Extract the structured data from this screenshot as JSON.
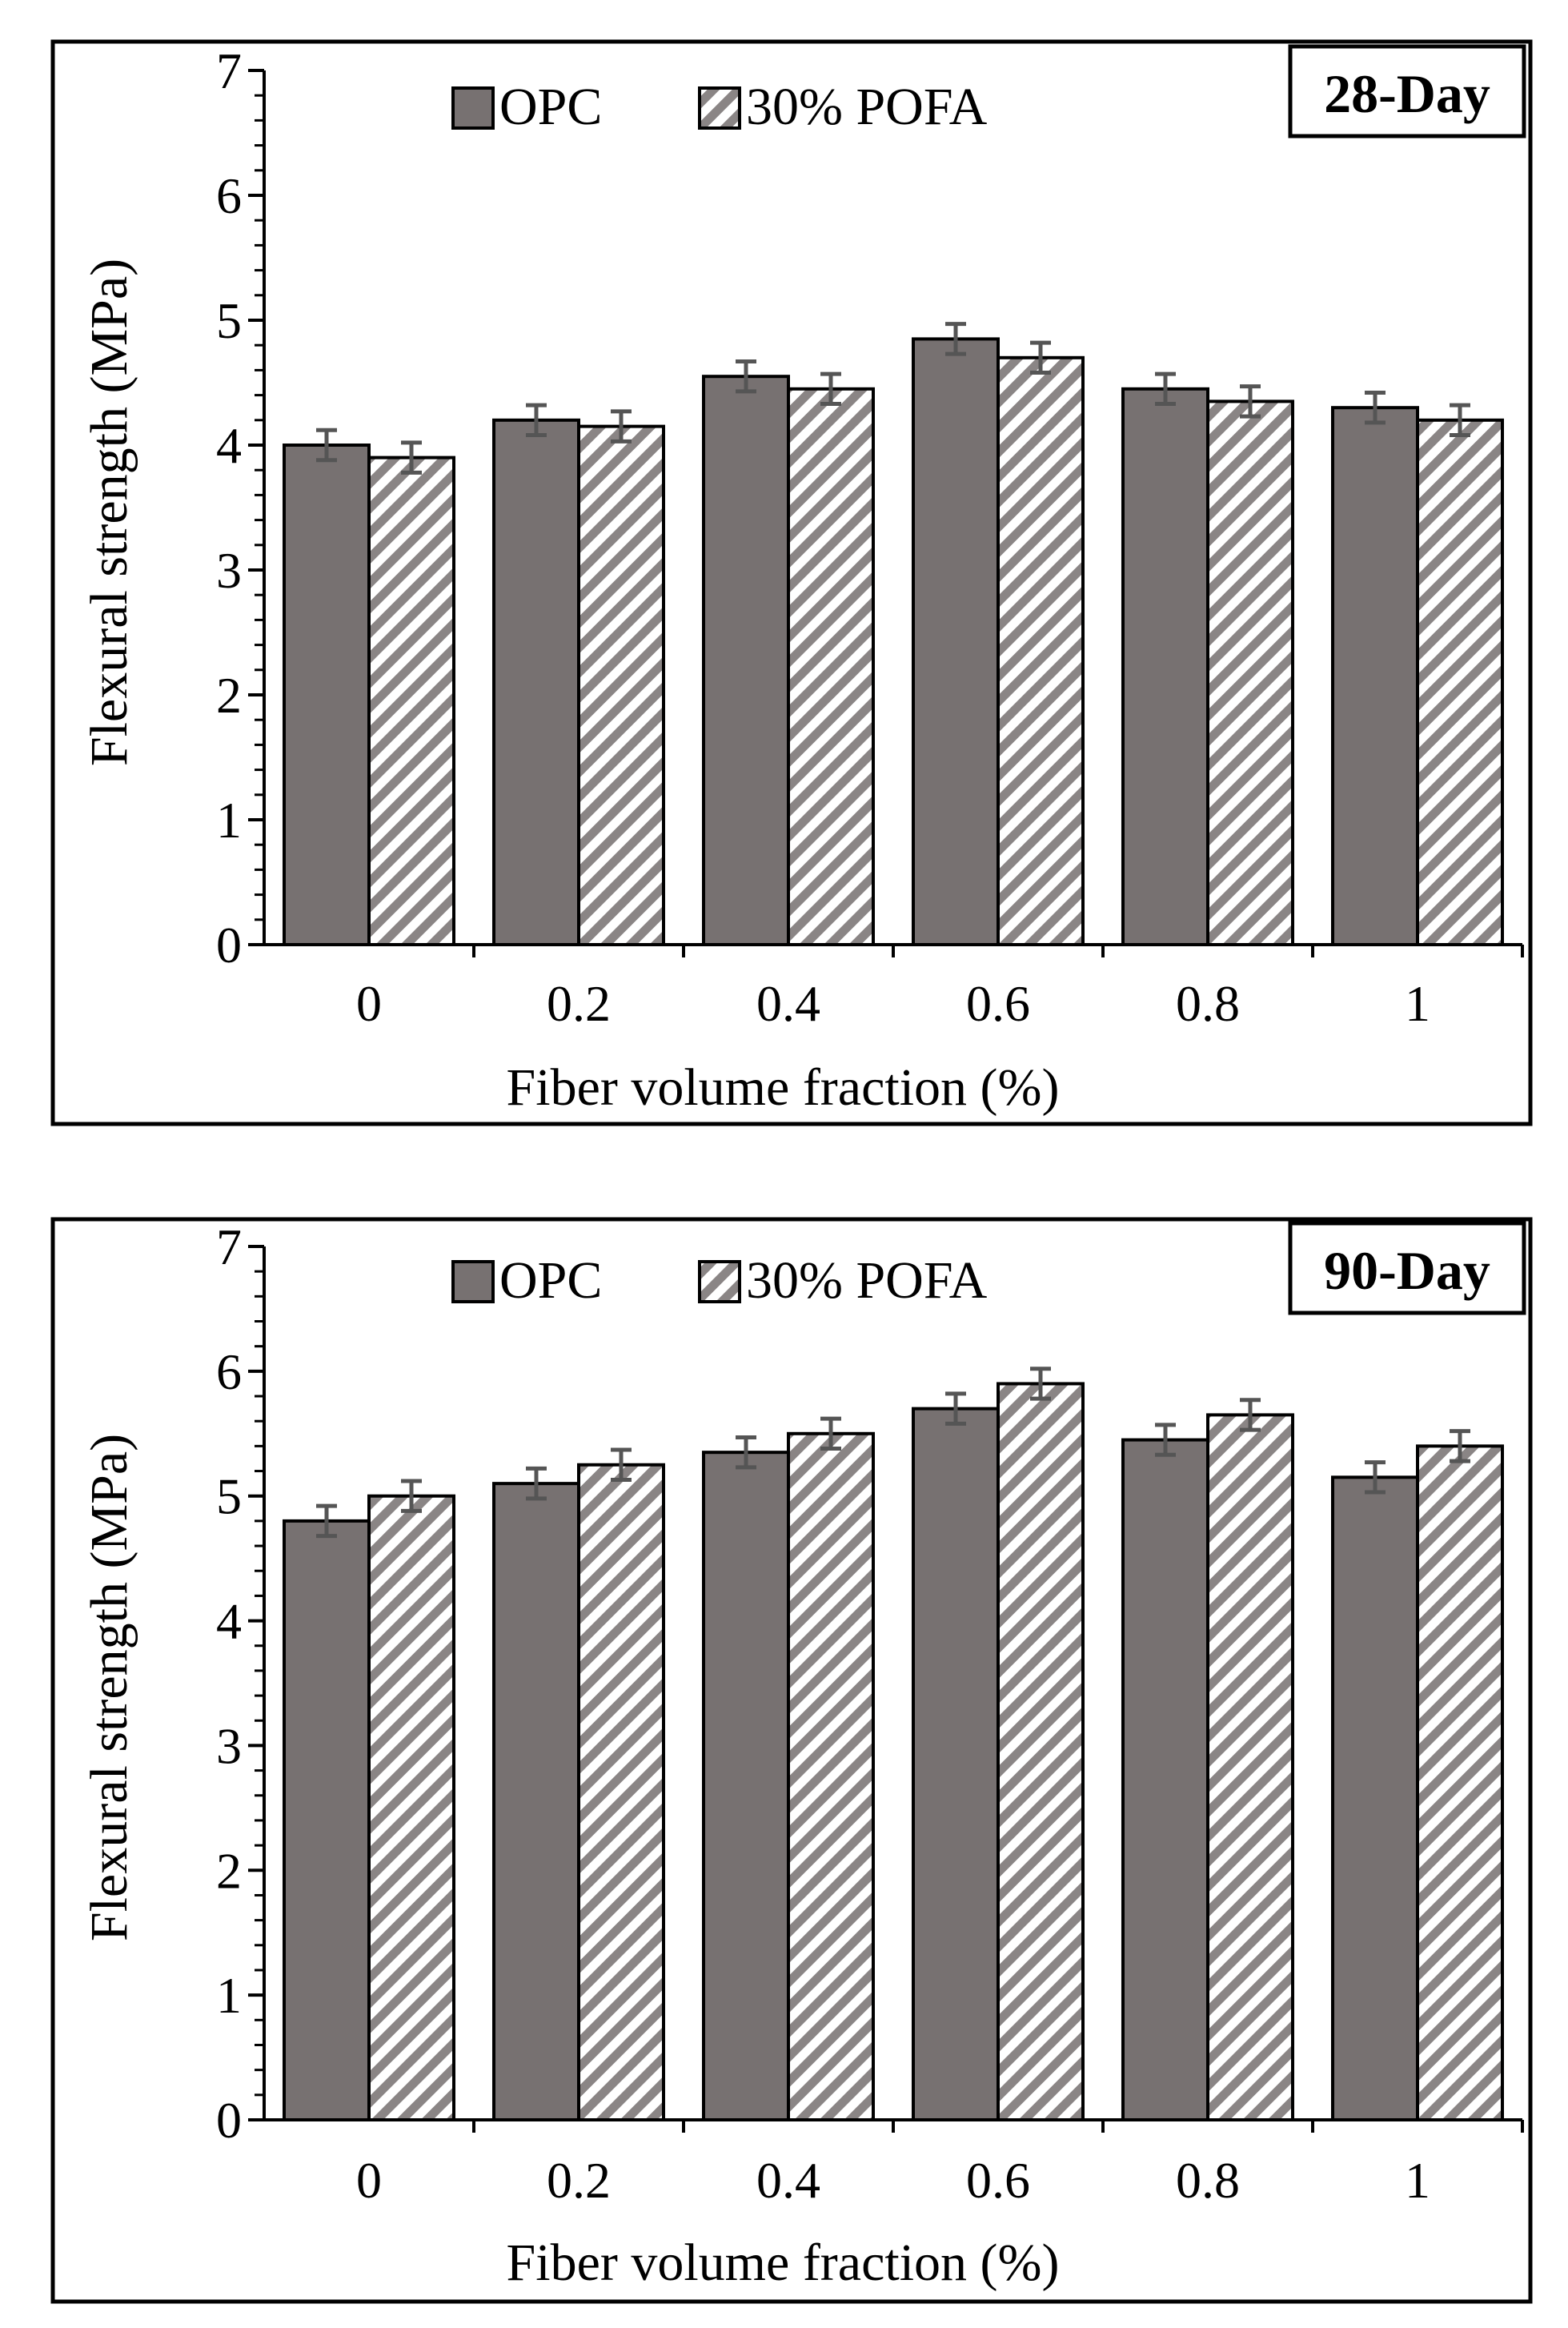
{
  "chart_data": [
    {
      "type": "bar",
      "title": "",
      "panel_label": "28-Day",
      "xlabel": "Fiber volume fraction (%)",
      "ylabel": "Flexural strength (MPa)",
      "ylim": [
        0,
        7
      ],
      "yticks": [
        "0",
        "1",
        "2",
        "3",
        "4",
        "5",
        "6",
        "7"
      ],
      "categories": [
        "0",
        "0.2",
        "0.4",
        "0.6",
        "0.8",
        "1"
      ],
      "grid": false,
      "legend_position": "top-left",
      "series": [
        {
          "name": "OPC",
          "values": [
            4.0,
            4.2,
            4.55,
            4.85,
            4.45,
            4.3
          ],
          "error": [
            0.12,
            0.12,
            0.12,
            0.12,
            0.12,
            0.12
          ]
        },
        {
          "name": "30% POFA",
          "values": [
            3.9,
            4.15,
            4.45,
            4.7,
            4.35,
            4.2
          ],
          "error": [
            0.12,
            0.12,
            0.12,
            0.12,
            0.12,
            0.12
          ]
        }
      ]
    },
    {
      "type": "bar",
      "title": "",
      "panel_label": "90-Day",
      "xlabel": "Fiber volume fraction (%)",
      "ylabel": "Flexural strength (MPa)",
      "ylim": [
        0,
        7
      ],
      "yticks": [
        "0",
        "1",
        "2",
        "3",
        "4",
        "5",
        "6",
        "7"
      ],
      "categories": [
        "0",
        "0.2",
        "0.4",
        "0.6",
        "0.8",
        "1"
      ],
      "grid": false,
      "legend_position": "top-left",
      "series": [
        {
          "name": "OPC",
          "values": [
            4.8,
            5.1,
            5.35,
            5.7,
            5.45,
            5.15
          ],
          "error": [
            0.12,
            0.12,
            0.12,
            0.12,
            0.12,
            0.12
          ]
        },
        {
          "name": "30% POFA",
          "values": [
            5.0,
            5.25,
            5.5,
            5.9,
            5.65,
            5.4
          ],
          "error": [
            0.12,
            0.12,
            0.12,
            0.12,
            0.12,
            0.12
          ]
        }
      ]
    }
  ],
  "colors": {
    "opc_fill": "#777171",
    "hatch_stroke": "#8a8585",
    "error_bar": "#555555",
    "axis": "#000000"
  }
}
